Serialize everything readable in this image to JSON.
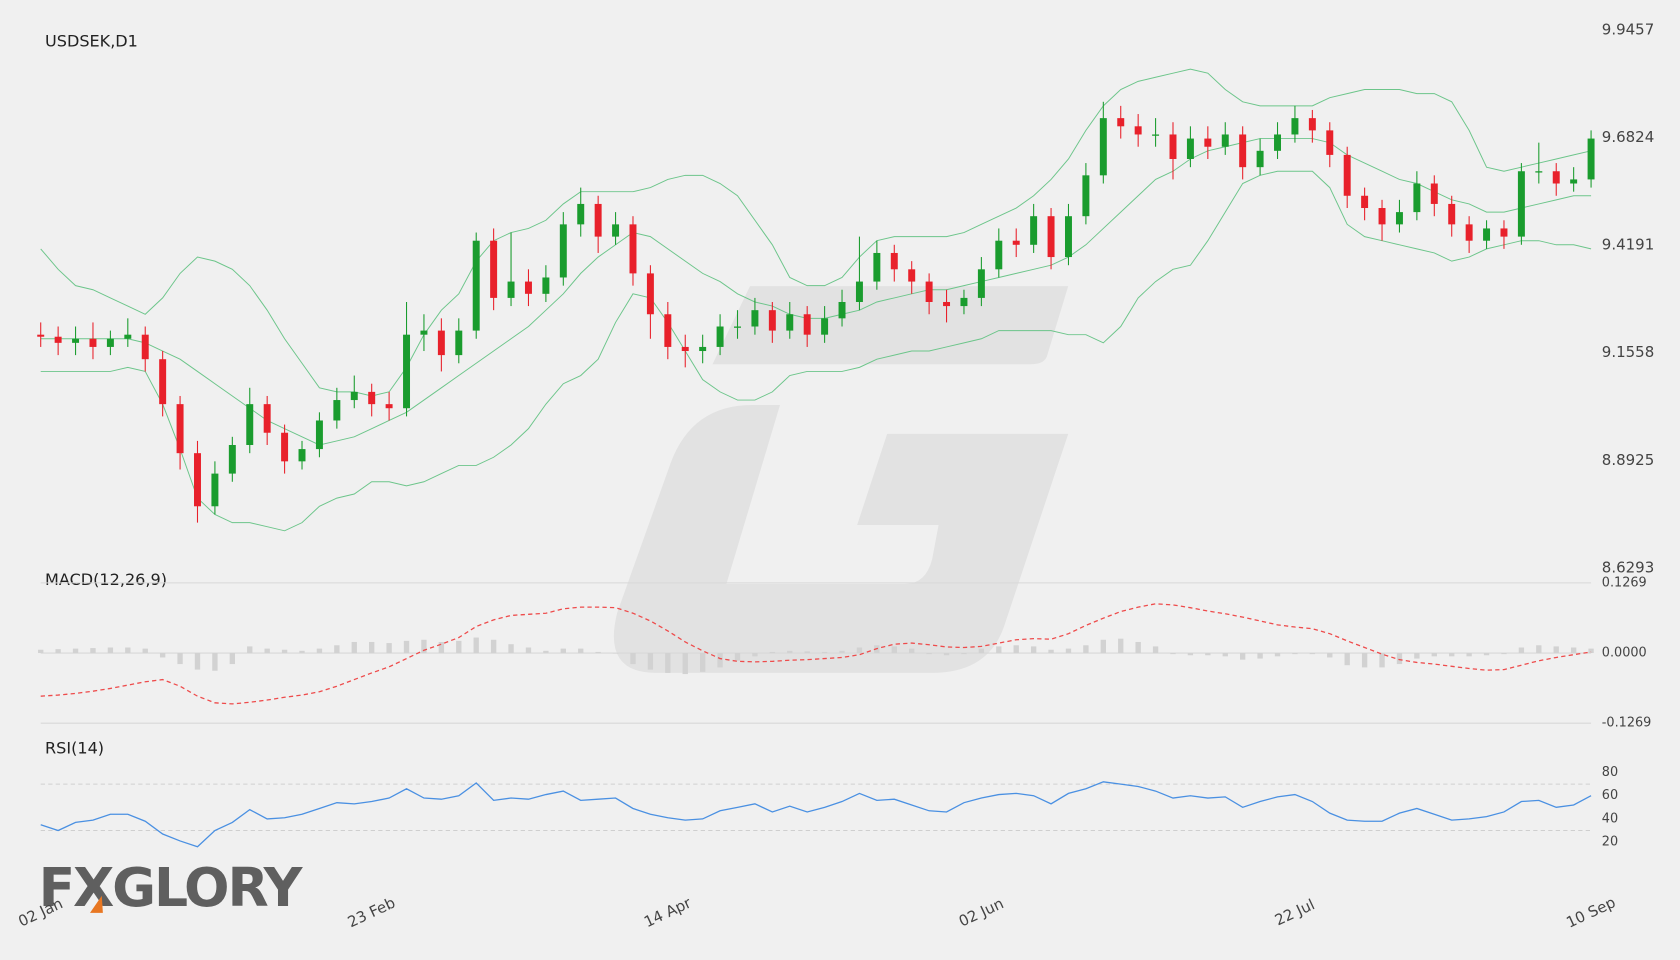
{
  "logo": "FXGLORY",
  "chart_data": [
    {
      "type": "candlestick",
      "title": "USDSEK,D1",
      "categories": [
        "02 Jan",
        null,
        null,
        null,
        null,
        null,
        null,
        null,
        null,
        null,
        null,
        null,
        null,
        null,
        null,
        null,
        null,
        null,
        null,
        "23 Feb",
        null,
        null,
        null,
        null,
        null,
        null,
        null,
        null,
        null,
        null,
        null,
        null,
        null,
        null,
        null,
        null,
        "14 Apr",
        null,
        null,
        null,
        null,
        null,
        null,
        null,
        null,
        null,
        null,
        null,
        null,
        null,
        null,
        null,
        null,
        null,
        "02 Jun",
        null,
        null,
        null,
        null,
        null,
        null,
        null,
        null,
        null,
        null,
        null,
        null,
        null,
        null,
        null,
        null,
        null,
        "22 Jul",
        null,
        null,
        null,
        null,
        null,
        null,
        null,
        null,
        null,
        null,
        null,
        null,
        null,
        null,
        null,
        null,
        "10 Sep"
      ],
      "open": [
        9.2,
        9.195,
        9.18,
        9.19,
        9.17,
        9.19,
        9.2,
        9.14,
        9.03,
        8.91,
        8.78,
        8.86,
        8.93,
        9.03,
        8.96,
        8.89,
        8.92,
        8.99,
        9.04,
        9.06,
        9.03,
        9.02,
        9.2,
        9.21,
        9.15,
        9.21,
        9.43,
        9.29,
        9.33,
        9.3,
        9.34,
        9.47,
        9.52,
        9.44,
        9.47,
        9.35,
        9.25,
        9.17,
        9.16,
        9.17,
        9.22,
        9.22,
        9.26,
        9.21,
        9.25,
        9.2,
        9.24,
        9.28,
        9.33,
        9.4,
        9.36,
        9.33,
        9.28,
        9.27,
        9.29,
        9.36,
        9.43,
        9.42,
        9.49,
        9.39,
        9.49,
        9.59,
        9.73,
        9.71,
        9.69,
        9.69,
        9.63,
        9.68,
        9.66,
        9.69,
        9.61,
        9.65,
        9.69,
        9.73,
        9.7,
        9.64,
        9.54,
        9.51,
        9.47,
        9.5,
        9.57,
        9.52,
        9.47,
        9.43,
        9.46,
        9.44,
        9.6,
        9.6,
        9.57,
        9.58
      ],
      "high": [
        9.23,
        9.22,
        9.22,
        9.23,
        9.21,
        9.24,
        9.22,
        9.16,
        9.05,
        8.94,
        8.89,
        8.95,
        9.07,
        9.05,
        8.98,
        8.94,
        9.01,
        9.07,
        9.1,
        9.08,
        9.06,
        9.28,
        9.25,
        9.24,
        9.24,
        9.45,
        9.46,
        9.45,
        9.36,
        9.37,
        9.5,
        9.56,
        9.54,
        9.5,
        9.49,
        9.37,
        9.28,
        9.2,
        9.2,
        9.25,
        9.26,
        9.29,
        9.28,
        9.28,
        9.27,
        9.27,
        9.31,
        9.44,
        9.43,
        9.42,
        9.38,
        9.35,
        9.31,
        9.31,
        9.39,
        9.46,
        9.46,
        9.52,
        9.51,
        9.52,
        9.62,
        9.77,
        9.76,
        9.74,
        9.73,
        9.72,
        9.71,
        9.71,
        9.72,
        9.71,
        9.68,
        9.72,
        9.76,
        9.75,
        9.72,
        9.66,
        9.56,
        9.53,
        9.53,
        9.6,
        9.59,
        9.54,
        9.49,
        9.48,
        9.48,
        9.62,
        9.67,
        9.62,
        9.61,
        9.7
      ],
      "low": [
        9.17,
        9.15,
        9.15,
        9.14,
        9.15,
        9.17,
        9.11,
        9.0,
        8.87,
        8.74,
        8.76,
        8.84,
        8.91,
        8.93,
        8.86,
        8.87,
        8.9,
        8.97,
        9.02,
        9.0,
        8.99,
        9.0,
        9.16,
        9.11,
        9.13,
        9.19,
        9.26,
        9.27,
        9.27,
        9.28,
        9.32,
        9.44,
        9.4,
        9.42,
        9.32,
        9.19,
        9.14,
        9.12,
        9.13,
        9.15,
        9.19,
        9.2,
        9.18,
        9.19,
        9.17,
        9.18,
        9.22,
        9.26,
        9.31,
        9.33,
        9.3,
        9.25,
        9.23,
        9.25,
        9.27,
        9.34,
        9.39,
        9.4,
        9.36,
        9.37,
        9.47,
        9.57,
        9.68,
        9.66,
        9.66,
        9.58,
        9.61,
        9.63,
        9.64,
        9.58,
        9.59,
        9.63,
        9.67,
        9.67,
        9.61,
        9.51,
        9.48,
        9.43,
        9.45,
        9.48,
        9.49,
        9.44,
        9.4,
        9.41,
        9.41,
        9.42,
        9.57,
        9.54,
        9.55,
        9.56
      ],
      "close": [
        9.195,
        9.18,
        9.19,
        9.17,
        9.19,
        9.2,
        9.14,
        9.03,
        8.91,
        8.78,
        8.86,
        8.93,
        9.03,
        8.96,
        8.89,
        8.92,
        8.99,
        9.04,
        9.06,
        9.03,
        9.02,
        9.2,
        9.21,
        9.15,
        9.21,
        9.43,
        9.29,
        9.33,
        9.3,
        9.34,
        9.47,
        9.52,
        9.44,
        9.47,
        9.35,
        9.25,
        9.17,
        9.16,
        9.17,
        9.22,
        9.22,
        9.26,
        9.21,
        9.25,
        9.2,
        9.24,
        9.28,
        9.33,
        9.4,
        9.36,
        9.33,
        9.28,
        9.27,
        9.29,
        9.36,
        9.43,
        9.42,
        9.49,
        9.39,
        9.49,
        9.59,
        9.73,
        9.71,
        9.69,
        9.69,
        9.63,
        9.68,
        9.66,
        9.69,
        9.61,
        9.65,
        9.69,
        9.73,
        9.7,
        9.64,
        9.54,
        9.51,
        9.47,
        9.5,
        9.57,
        9.52,
        9.47,
        9.43,
        9.46,
        9.44,
        9.6,
        9.6,
        9.57,
        9.58,
        9.68
      ],
      "up_color": "#1a9c2e",
      "down_color": "#e8212b",
      "bollinger": {
        "color": "#6cc58a",
        "upper": [
          9.41,
          9.36,
          9.32,
          9.31,
          9.29,
          9.27,
          9.25,
          9.29,
          9.35,
          9.39,
          9.38,
          9.36,
          9.32,
          9.26,
          9.19,
          9.13,
          9.07,
          9.06,
          9.06,
          9.05,
          9.06,
          9.12,
          9.2,
          9.26,
          9.3,
          9.38,
          9.43,
          9.45,
          9.46,
          9.48,
          9.52,
          9.55,
          9.55,
          9.55,
          9.55,
          9.56,
          9.58,
          9.59,
          9.59,
          9.57,
          9.54,
          9.48,
          9.42,
          9.34,
          9.32,
          9.32,
          9.34,
          9.39,
          9.43,
          9.44,
          9.44,
          9.44,
          9.44,
          9.45,
          9.47,
          9.49,
          9.51,
          9.54,
          9.58,
          9.63,
          9.7,
          9.76,
          9.8,
          9.82,
          9.83,
          9.84,
          9.85,
          9.84,
          9.8,
          9.77,
          9.76,
          9.76,
          9.76,
          9.76,
          9.78,
          9.79,
          9.8,
          9.8,
          9.8,
          9.79,
          9.79,
          9.77,
          9.7,
          9.61,
          9.6,
          9.61,
          9.62,
          9.63,
          9.64,
          9.65
        ],
        "middle": [
          9.19,
          9.19,
          9.19,
          9.19,
          9.19,
          9.19,
          9.18,
          9.16,
          9.14,
          9.11,
          9.08,
          9.05,
          9.02,
          8.99,
          8.97,
          8.95,
          8.93,
          8.94,
          8.95,
          8.97,
          8.99,
          9.01,
          9.04,
          9.07,
          9.1,
          9.13,
          9.16,
          9.19,
          9.22,
          9.26,
          9.3,
          9.35,
          9.39,
          9.42,
          9.45,
          9.44,
          9.41,
          9.38,
          9.35,
          9.33,
          9.3,
          9.28,
          9.27,
          9.25,
          9.24,
          9.24,
          9.25,
          9.26,
          9.28,
          9.29,
          9.3,
          9.31,
          9.31,
          9.32,
          9.33,
          9.34,
          9.35,
          9.36,
          9.37,
          9.39,
          9.42,
          9.46,
          9.5,
          9.54,
          9.58,
          9.6,
          9.63,
          9.65,
          9.66,
          9.67,
          9.68,
          9.68,
          9.68,
          9.68,
          9.67,
          9.64,
          9.62,
          9.6,
          9.58,
          9.57,
          9.55,
          9.53,
          9.52,
          9.5,
          9.5,
          9.51,
          9.52,
          9.53,
          9.54,
          9.54
        ],
        "lower": [
          9.11,
          9.11,
          9.11,
          9.11,
          9.11,
          9.12,
          9.11,
          9.03,
          8.92,
          8.8,
          8.76,
          8.74,
          8.74,
          8.73,
          8.72,
          8.74,
          8.78,
          8.8,
          8.81,
          8.84,
          8.84,
          8.83,
          8.84,
          8.86,
          8.88,
          8.88,
          8.9,
          8.93,
          8.97,
          9.03,
          9.08,
          9.1,
          9.14,
          9.23,
          9.3,
          9.29,
          9.23,
          9.16,
          9.09,
          9.06,
          9.04,
          9.04,
          9.06,
          9.1,
          9.11,
          9.11,
          9.11,
          9.12,
          9.14,
          9.15,
          9.16,
          9.16,
          9.17,
          9.18,
          9.19,
          9.21,
          9.21,
          9.21,
          9.21,
          9.2,
          9.2,
          9.18,
          9.22,
          9.29,
          9.33,
          9.36,
          9.37,
          9.43,
          9.5,
          9.57,
          9.59,
          9.6,
          9.6,
          9.6,
          9.56,
          9.47,
          9.44,
          9.43,
          9.42,
          9.41,
          9.4,
          9.38,
          9.39,
          9.41,
          9.42,
          9.43,
          9.43,
          9.42,
          9.42,
          9.41
        ]
      },
      "ylim": [
        8.6293,
        9.9457
      ],
      "yticks": [
        9.9457,
        9.6824,
        9.4191,
        9.1558,
        8.8925,
        8.6293
      ]
    },
    {
      "type": "macd",
      "title": "MACD(12,26,9)",
      "histogram": {
        "color": "#d2d2d2",
        "values": [
          0.006,
          0.007,
          0.008,
          0.009,
          0.01,
          0.01,
          0.008,
          -0.008,
          -0.02,
          -0.03,
          -0.032,
          -0.02,
          0.012,
          0.008,
          0.006,
          0.004,
          0.008,
          0.014,
          0.02,
          0.02,
          0.018,
          0.022,
          0.024,
          0.02,
          0.022,
          0.028,
          0.024,
          0.016,
          0.01,
          0.004,
          0.008,
          0.008,
          0.002,
          0.0,
          -0.02,
          -0.03,
          -0.036,
          -0.038,
          -0.034,
          -0.026,
          -0.014,
          -0.006,
          0.002,
          0.004,
          0.003,
          0.002,
          0.004,
          0.01,
          0.014,
          0.012,
          0.008,
          -0.002,
          -0.004,
          -0.002,
          0.008,
          0.012,
          0.014,
          0.012,
          0.006,
          0.008,
          0.014,
          0.024,
          0.026,
          0.02,
          0.012,
          -0.002,
          -0.004,
          -0.004,
          -0.006,
          -0.012,
          -0.01,
          -0.006,
          -0.002,
          -0.002,
          -0.008,
          -0.022,
          -0.026,
          -0.026,
          -0.02,
          -0.01,
          -0.006,
          -0.006,
          -0.006,
          -0.004,
          -0.002,
          0.01,
          0.014,
          0.012,
          0.01,
          0.008
        ]
      },
      "signal": {
        "color": "#ee4b4b",
        "values": [
          -0.078,
          -0.076,
          -0.073,
          -0.069,
          -0.064,
          -0.058,
          -0.052,
          -0.048,
          -0.06,
          -0.078,
          -0.09,
          -0.092,
          -0.089,
          -0.085,
          -0.08,
          -0.076,
          -0.07,
          -0.06,
          -0.048,
          -0.036,
          -0.025,
          -0.01,
          0.005,
          0.016,
          0.028,
          0.048,
          0.06,
          0.068,
          0.07,
          0.072,
          0.08,
          0.083,
          0.083,
          0.082,
          0.072,
          0.058,
          0.04,
          0.02,
          0.004,
          -0.01,
          -0.015,
          -0.016,
          -0.015,
          -0.013,
          -0.012,
          -0.01,
          -0.008,
          -0.003,
          0.008,
          0.016,
          0.018,
          0.015,
          0.011,
          0.01,
          0.012,
          0.018,
          0.024,
          0.026,
          0.025,
          0.035,
          0.05,
          0.063,
          0.075,
          0.083,
          0.089,
          0.087,
          0.082,
          0.076,
          0.071,
          0.065,
          0.058,
          0.051,
          0.047,
          0.044,
          0.035,
          0.022,
          0.01,
          -0.002,
          -0.012,
          -0.017,
          -0.02,
          -0.024,
          -0.028,
          -0.031,
          -0.03,
          -0.022,
          -0.014,
          -0.008,
          -0.003,
          0.002
        ]
      },
      "ylim": [
        -0.1269,
        0.1269
      ],
      "yticks": [
        0.1269,
        {
          "value": 0,
          "label": "0.0000"
        },
        -0.1269
      ]
    },
    {
      "type": "line",
      "title": "RSI(14)",
      "color": "#4a90e2",
      "values": [
        35,
        30,
        37,
        39,
        44,
        44,
        38,
        27,
        21,
        16,
        30,
        37,
        48,
        40,
        41,
        44,
        49,
        54,
        53,
        55,
        58,
        66,
        58,
        57,
        60,
        71,
        56,
        58,
        57,
        61,
        64,
        56,
        57,
        58,
        49,
        44,
        41,
        39,
        40,
        47,
        50,
        53,
        46,
        51,
        46,
        50,
        55,
        62,
        56,
        57,
        52,
        47,
        46,
        54,
        58,
        61,
        62,
        60,
        53,
        62,
        66,
        72,
        70,
        68,
        64,
        58,
        60,
        58,
        59,
        50,
        55,
        59,
        61,
        55,
        45,
        39,
        38,
        38,
        45,
        49,
        44,
        39,
        40,
        42,
        46,
        55,
        56,
        50,
        52,
        60
      ],
      "ylim": [
        10,
        90
      ],
      "yticks": [
        80,
        60,
        40,
        20
      ],
      "levels": [
        30,
        70
      ]
    }
  ]
}
